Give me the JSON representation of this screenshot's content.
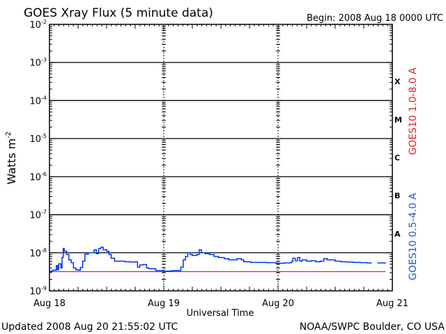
{
  "header": {
    "title": "GOES Xray Flux (5 minute data)",
    "begin": "Begin:  2008 Aug 18 0000 UTC"
  },
  "footer": {
    "updated": "Updated 2008 Aug 20 21:55:02 UTC",
    "credit": "NOAA/SWPC Boulder, CO USA"
  },
  "chart_data": {
    "type": "line",
    "title": "GOES Xray Flux (5 minute data)",
    "xlabel": "Universal Time",
    "ylabel_base": "Watts m",
    "ylabel_exp": "-2",
    "yscale": "log",
    "ylim": [
      1e-09,
      0.01
    ],
    "xlim_days": [
      0,
      3
    ],
    "x_ticks": [
      "Aug 18",
      "Aug 19",
      "Aug 20",
      "Aug 21"
    ],
    "y_ticks": [
      {
        "exp": -9
      },
      {
        "exp": -8
      },
      {
        "exp": -7
      },
      {
        "exp": -6
      },
      {
        "exp": -5
      },
      {
        "exp": -4
      },
      {
        "exp": -3
      },
      {
        "exp": -2
      }
    ],
    "flare_classes": [
      {
        "label": "A",
        "exp": -8
      },
      {
        "label": "B",
        "exp": -7
      },
      {
        "label": "C",
        "exp": -6
      },
      {
        "label": "M",
        "exp": -5
      },
      {
        "label": "X",
        "exp": -4
      }
    ],
    "grid": "horizontal lines at each decade",
    "series": [
      {
        "name": "GOES10 1.0-8.0 A",
        "color": "#dd2222",
        "points": [
          [
            0.0,
            3.2e-09
          ],
          [
            2.94,
            3.2e-09
          ]
        ]
      },
      {
        "name": "GOES10 0.5-4.0 A",
        "color": "#0033ee",
        "points": [
          [
            0.0,
            3.3e-09
          ],
          [
            0.03,
            3.5e-09
          ],
          [
            0.06,
            4.6e-09
          ],
          [
            0.07,
            3.6e-09
          ],
          [
            0.08,
            5.1e-09
          ],
          [
            0.1,
            4e-09
          ],
          [
            0.11,
            7.5e-09
          ],
          [
            0.12,
            1.3e-08
          ],
          [
            0.13,
            1.1e-08
          ],
          [
            0.15,
            9e-09
          ],
          [
            0.17,
            6.5e-09
          ],
          [
            0.19,
            5.5e-09
          ],
          [
            0.21,
            4e-09
          ],
          [
            0.23,
            3.6e-09
          ],
          [
            0.25,
            3.5e-09
          ],
          [
            0.27,
            4.1e-09
          ],
          [
            0.29,
            6e-09
          ],
          [
            0.31,
            9.2e-09
          ],
          [
            0.34,
            1e-08
          ],
          [
            0.37,
            1e-08
          ],
          [
            0.39,
            1.2e-08
          ],
          [
            0.41,
            9.5e-09
          ],
          [
            0.43,
            1.3e-08
          ],
          [
            0.45,
            1.4e-08
          ],
          [
            0.47,
            1.2e-08
          ],
          [
            0.5,
            1.1e-08
          ],
          [
            0.52,
            9e-09
          ],
          [
            0.54,
            7.2e-09
          ],
          [
            0.57,
            6e-09
          ],
          [
            0.61,
            6e-09
          ],
          [
            0.66,
            5.8e-09
          ],
          [
            0.71,
            5.7e-09
          ],
          [
            0.75,
            5.8e-09
          ],
          [
            0.77,
            4.2e-09
          ],
          [
            0.79,
            4.8e-09
          ],
          [
            0.82,
            4.9e-09
          ],
          [
            0.85,
            4e-09
          ],
          [
            0.87,
            3.8e-09
          ],
          [
            0.93,
            3.4e-09
          ],
          [
            1.0,
            3.3e-09
          ],
          [
            1.07,
            3.4e-09
          ],
          [
            1.12,
            3.4e-09
          ],
          [
            1.15,
            4.2e-09
          ],
          [
            1.17,
            6.5e-09
          ],
          [
            1.19,
            8e-09
          ],
          [
            1.21,
            1e-08
          ],
          [
            1.23,
            9e-09
          ],
          [
            1.25,
            8.5e-09
          ],
          [
            1.29,
            9e-09
          ],
          [
            1.31,
            1.2e-08
          ],
          [
            1.33,
            1e-08
          ],
          [
            1.36,
            9.5e-09
          ],
          [
            1.4,
            9e-09
          ],
          [
            1.44,
            8e-09
          ],
          [
            1.48,
            7.5e-09
          ],
          [
            1.53,
            7e-09
          ],
          [
            1.57,
            6.5e-09
          ],
          [
            1.6,
            6.5e-09
          ],
          [
            1.64,
            7e-09
          ],
          [
            1.68,
            6.5e-09
          ],
          [
            1.7,
            5.8e-09
          ],
          [
            1.76,
            5.6e-09
          ],
          [
            1.83,
            5.6e-09
          ],
          [
            1.9,
            5.5e-09
          ],
          [
            1.98,
            5.3e-09
          ],
          [
            2.05,
            5.4e-09
          ],
          [
            2.1,
            5.5e-09
          ],
          [
            2.12,
            6e-09
          ],
          [
            2.13,
            7.2e-09
          ],
          [
            2.15,
            6.2e-09
          ],
          [
            2.17,
            7.5e-09
          ],
          [
            2.19,
            6e-09
          ],
          [
            2.21,
            6.5e-09
          ],
          [
            2.25,
            6e-09
          ],
          [
            2.29,
            6.2e-09
          ],
          [
            2.33,
            5.8e-09
          ],
          [
            2.37,
            6e-09
          ],
          [
            2.4,
            7e-09
          ],
          [
            2.43,
            6.5e-09
          ],
          [
            2.46,
            6.5e-09
          ],
          [
            2.5,
            6e-09
          ],
          [
            2.55,
            5.8e-09
          ],
          [
            2.6,
            5.7e-09
          ],
          [
            2.66,
            5.6e-09
          ],
          [
            2.72,
            5.5e-09
          ],
          [
            2.78,
            5.4e-09
          ],
          [
            2.82,
            5.4e-09
          ],
          [
            2.84,
            null
          ],
          [
            2.87,
            5.4e-09
          ],
          [
            2.94,
            5.3e-09
          ]
        ]
      }
    ]
  }
}
